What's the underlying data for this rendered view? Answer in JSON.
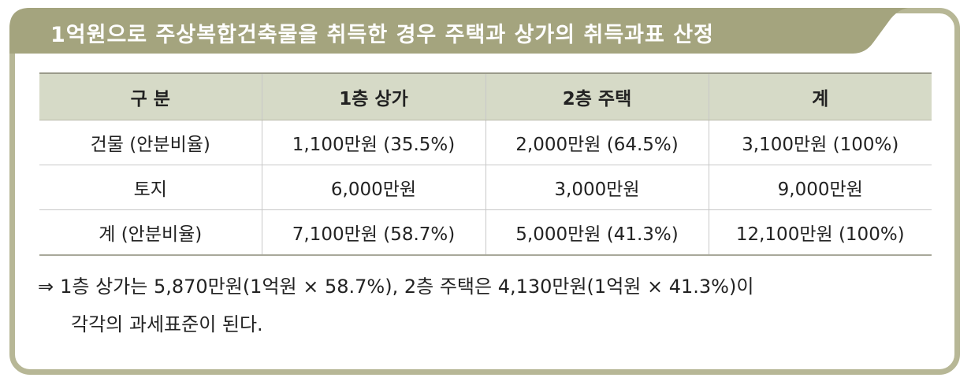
{
  "title": "1억원으로 주상복합건축물을 취득한 경우 주택과 상가의 취득과표 산정",
  "colors": {
    "frame": "#b7b796",
    "title_bar": "#a4a47e",
    "header_bg": "#d6dac7"
  },
  "table": {
    "headers": [
      "구 분",
      "1층 상가",
      "2층 주택",
      "계"
    ],
    "rows": [
      [
        "건물 (안분비율)",
        "1,100만원 (35.5%)",
        "2,000만원 (64.5%)",
        "3,100만원 (100%)"
      ],
      [
        "토지",
        "6,000만원",
        "3,000만원",
        "9,000만원"
      ],
      [
        "계 (안분비율)",
        "7,100만원 (58.7%)",
        "5,000만원 (41.3%)",
        "12,100만원 (100%)"
      ]
    ]
  },
  "note": {
    "arrow": "⇒",
    "line1": "1층 상가는 5,870만원(1억원 × 58.7%), 2층 주택은 4,130만원(1억원 × 41.3%)이",
    "line2": "각각의 과세표준이 된다."
  }
}
